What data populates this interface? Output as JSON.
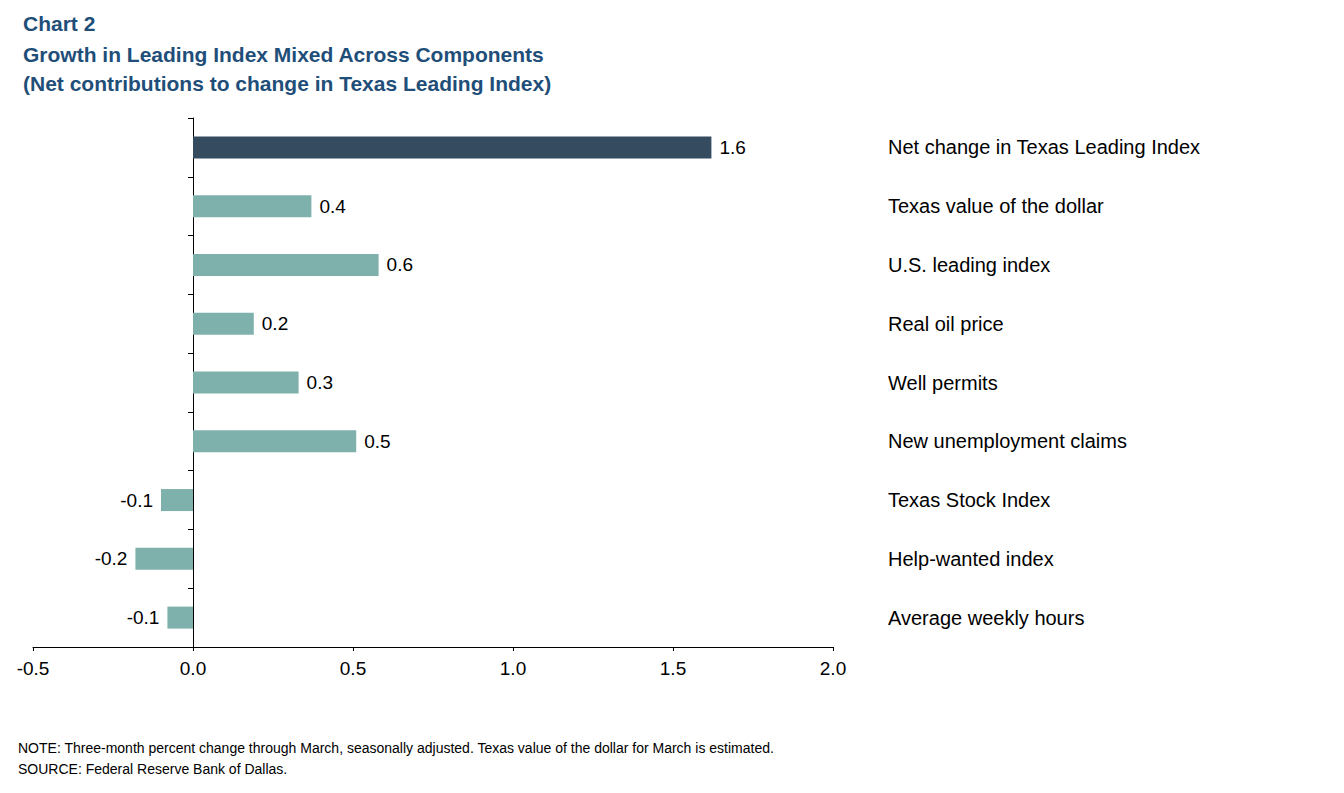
{
  "chart_data": {
    "type": "bar",
    "orientation": "horizontal",
    "title": "Chart 2",
    "subtitle": [
      "Growth in Leading Index Mixed Across Components",
      "(Net contributions to change in Texas Leading Index)"
    ],
    "notes": [
      "NOTE: Three-month percent change through March, seasonally adjusted. Texas value of the dollar for March is estimated.",
      "SOURCE: Federal Reserve Bank of Dallas."
    ],
    "categories": [
      "Net change in Texas Leading Index",
      "Texas value of the dollar",
      "U.S. leading index",
      "Real oil price",
      "Well permits",
      "New unemployment claims",
      "Texas Stock Index",
      "Help-wanted index",
      "Average weekly hours"
    ],
    "values": [
      1.62,
      0.37,
      0.58,
      0.19,
      0.33,
      0.51,
      -0.1,
      -0.18,
      -0.08
    ],
    "value_labels": [
      "1.6",
      "0.4",
      "0.6",
      "0.2",
      "0.3",
      "0.5",
      "-0.1",
      "-0.2",
      "-0.1"
    ],
    "data_labels": true,
    "colors": [
      "#344b60",
      "#7fb1ac",
      "#7fb1ac",
      "#7fb1ac",
      "#7fb1ac",
      "#7fb1ac",
      "#7fb1ac",
      "#7fb1ac",
      "#7fb1ac"
    ],
    "xlim": [
      -0.5,
      2.0
    ],
    "xticks": [
      -0.5,
      {
        "value": 0,
        "label": "0.0"
      },
      0.5,
      {
        "value": 1,
        "label": "1.0"
      },
      1.5,
      {
        "value": 2,
        "label": "2.0"
      }
    ],
    "grid": false
  }
}
